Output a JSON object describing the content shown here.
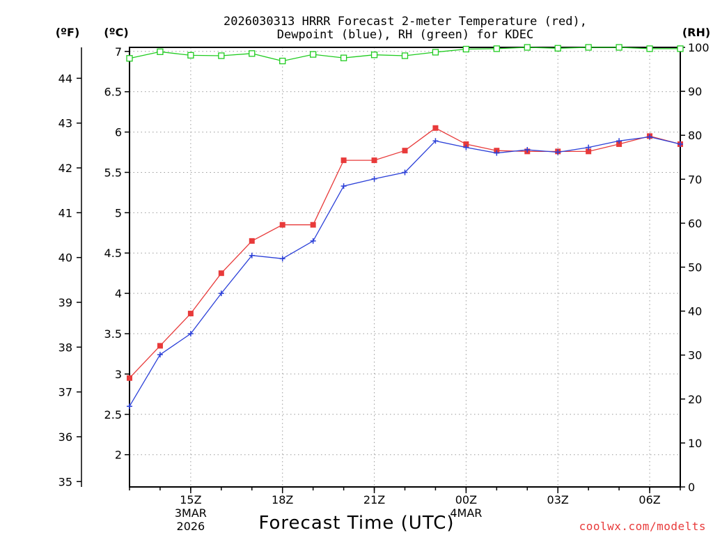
{
  "chart_data": {
    "type": "line",
    "title_line1": "2026030313 HRRR Forecast 2-meter Temperature (red),",
    "title_line2": "Dewpoint (blue), RH (green) for KDEC",
    "xlabel": "Forecast Time (UTC)",
    "watermark": "coolwx.com/modelts",
    "left_f_label": "(ºF)",
    "left_c_label": "(ºC)",
    "right_label": "(RH)",
    "x": [
      13,
      14,
      15,
      16,
      17,
      18,
      19,
      20,
      21,
      22,
      23,
      24,
      25,
      26,
      27,
      28,
      29,
      30,
      31
    ],
    "x_ticks": [
      {
        "at": 15,
        "label": "15Z",
        "sub1": "3MAR",
        "sub2": "2026"
      },
      {
        "at": 18,
        "label": "18Z"
      },
      {
        "at": 21,
        "label": "21Z"
      },
      {
        "at": 24,
        "label": "00Z",
        "sub1": "4MAR"
      },
      {
        "at": 27,
        "label": "03Z"
      },
      {
        "at": 30,
        "label": "06Z"
      }
    ],
    "xlim": [
      13,
      31
    ],
    "celsius_axis": {
      "ylim": [
        1.6,
        7.05
      ],
      "ticks": [
        2,
        2.5,
        3,
        3.5,
        4,
        4.5,
        5,
        5.5,
        6,
        6.5,
        7
      ]
    },
    "fahrenheit_axis": {
      "ticks": [
        35,
        36,
        37,
        38,
        39,
        40,
        41,
        42,
        43,
        44
      ]
    },
    "rh_axis": {
      "ylim": [
        0,
        100
      ],
      "ticks": [
        0,
        10,
        20,
        30,
        40,
        50,
        60,
        70,
        80,
        90,
        100
      ]
    },
    "series": [
      {
        "name": "Temperature",
        "unit": "C",
        "color": "#e83a3a",
        "values": [
          2.95,
          3.35,
          3.75,
          4.25,
          4.65,
          4.85,
          4.85,
          5.65,
          5.65,
          5.77,
          6.05,
          5.85,
          5.77,
          5.76,
          5.76,
          5.76,
          5.85,
          5.95,
          5.85
        ]
      },
      {
        "name": "Dewpoint",
        "unit": "C",
        "color": "#2a3fd8",
        "values": [
          2.6,
          3.24,
          3.5,
          4.0,
          4.47,
          4.43,
          4.65,
          5.33,
          5.42,
          5.5,
          5.89,
          5.81,
          5.74,
          5.78,
          5.75,
          5.81,
          5.89,
          5.94,
          5.85
        ]
      },
      {
        "name": "RH",
        "unit": "%",
        "color": "#1fcc1f",
        "values": [
          97.5,
          99.0,
          98.2,
          98.1,
          98.6,
          96.9,
          98.4,
          97.6,
          98.3,
          98.1,
          98.9,
          99.6,
          99.7,
          100,
          99.8,
          100,
          100,
          99.7,
          99.7
        ]
      }
    ]
  }
}
